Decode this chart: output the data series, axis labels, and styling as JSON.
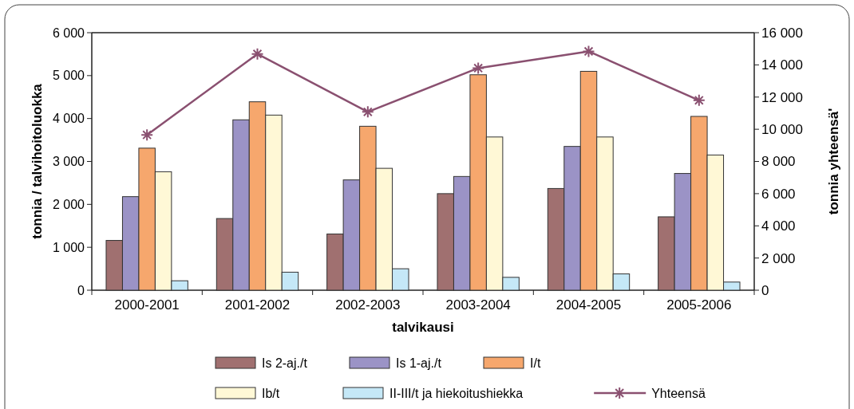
{
  "chart_data": {
    "type": "bar",
    "xlabel": "talvikausi",
    "ylabel": "tonnia / talvihoitoluokka",
    "y2label": "tonnia yhteensä'",
    "categories": [
      "2000-2001",
      "2001-2002",
      "2002-2003",
      "2003-2004",
      "2004-2005",
      "2005-2006"
    ],
    "series": [
      {
        "name": "Is 2-aj./t",
        "color": "#a07070",
        "values": [
          1160,
          1670,
          1310,
          2250,
          2370,
          1710
        ]
      },
      {
        "name": "Is 1-aj./t",
        "color": "#9b93c6",
        "values": [
          2180,
          3970,
          2570,
          2650,
          3350,
          2720
        ]
      },
      {
        "name": "I/t",
        "color": "#f6a76d",
        "values": [
          3310,
          4390,
          3820,
          5020,
          5100,
          4050
        ]
      },
      {
        "name": "Ib/t",
        "color": "#fff8d6",
        "values": [
          2760,
          4080,
          2840,
          3570,
          3570,
          3150
        ]
      },
      {
        "name": "II-III/t ja hiekoitushiekka",
        "color": "#c5e8f7",
        "values": [
          220,
          420,
          500,
          300,
          380,
          190
        ]
      },
      {
        "name": "Yhteensä",
        "type": "line",
        "axis": "y2",
        "color": "#8a5070",
        "marker": "cross",
        "values": [
          9650,
          14680,
          11080,
          13800,
          14840,
          11800
        ]
      }
    ],
    "ylim": [
      0,
      6000
    ],
    "yticks": [
      {
        "value": 0,
        "label": "0"
      },
      {
        "value": 1000,
        "label": "1 000"
      },
      {
        "value": 2000,
        "label": "2 000"
      },
      {
        "value": 3000,
        "label": "3 000"
      },
      {
        "value": 4000,
        "label": "4 000"
      },
      {
        "value": 5000,
        "label": "5 000"
      },
      {
        "value": 6000,
        "label": "6 000"
      }
    ],
    "y2lim": [
      0,
      16000
    ],
    "y2ticks": [
      {
        "value": 0,
        "label": "0"
      },
      {
        "value": 2000,
        "label": "2 000"
      },
      {
        "value": 4000,
        "label": "4 000"
      },
      {
        "value": 6000,
        "label": "6 000"
      },
      {
        "value": 8000,
        "label": "8 000"
      },
      {
        "value": 10000,
        "label": "10 000"
      },
      {
        "value": 12000,
        "label": "12 000"
      },
      {
        "value": 14000,
        "label": "14 000"
      },
      {
        "value": 16000,
        "label": "16 000"
      }
    ],
    "grid": false,
    "legend": "bottom"
  }
}
